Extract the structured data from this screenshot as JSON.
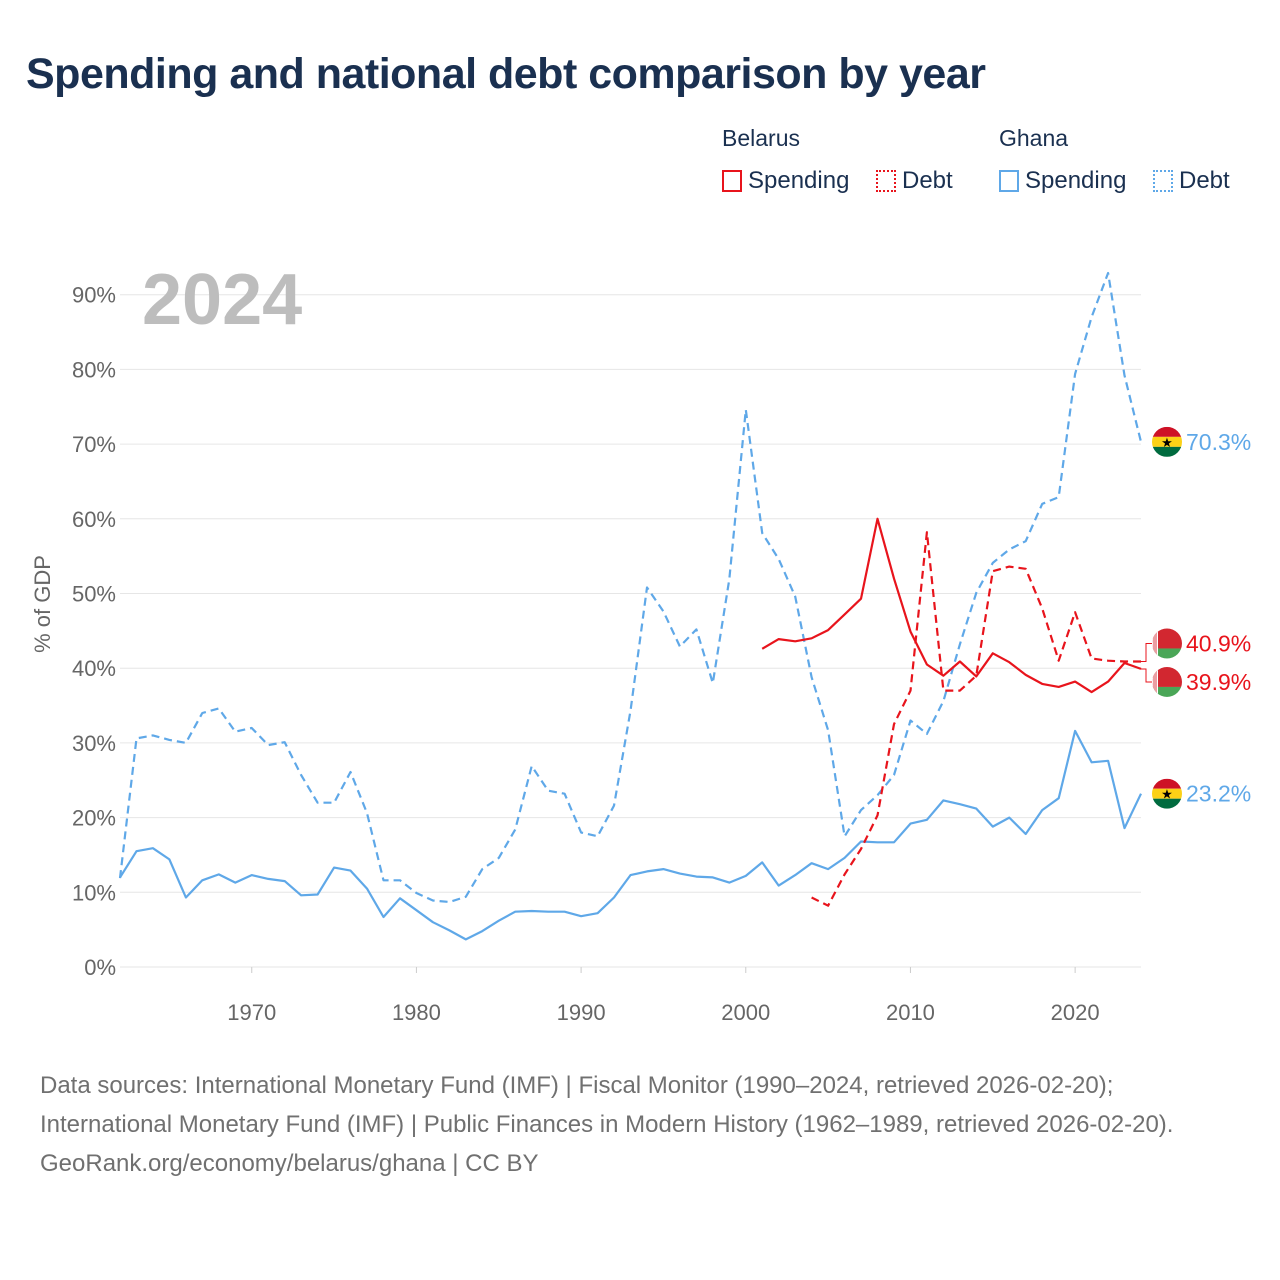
{
  "title": "Spending and national debt comparison by year",
  "legend": {
    "belarus": {
      "country": "Belarus",
      "spending": "Spending",
      "debt": "Debt"
    },
    "ghana": {
      "country": "Ghana",
      "spending": "Spending",
      "debt": "Debt"
    }
  },
  "footer": {
    "sources": "Data sources: International Monetary Fund (IMF) | Fiscal Monitor (1990–2024, retrieved 2026-02-20); International Monetary Fund (IMF) | Public Finances in Modern History (1962–1989, retrieved 2026-02-20).",
    "credit": "GeoRank.org/economy/belarus/ghana | CC BY"
  },
  "colors": {
    "belarus": "#e8141c",
    "ghana": "#5fa8e8",
    "grid": "#e6e6e6",
    "year_watermark": "#bdbdbd",
    "axis_text": "#666666"
  },
  "chart_data": {
    "type": "line",
    "year_label": "2024",
    "ylabel": "% of GDP",
    "xlim": [
      1962,
      2024
    ],
    "ylim": [
      0,
      95
    ],
    "yticks": [
      0,
      10,
      20,
      30,
      40,
      50,
      60,
      70,
      80,
      90
    ],
    "ytick_labels": [
      "0%",
      "10%",
      "20%",
      "30%",
      "40%",
      "50%",
      "60%",
      "70%",
      "80%",
      "90%"
    ],
    "xticks": [
      1970,
      1980,
      1990,
      2000,
      2010,
      2020
    ],
    "xtick_labels": [
      "1970",
      "1980",
      "1990",
      "2000",
      "2010",
      "2020"
    ],
    "series": [
      {
        "name": "Ghana Debt",
        "country": "Ghana",
        "metric": "Debt",
        "style": "dashed",
        "end_label": "70.3%",
        "x": [
          1962,
          1963,
          1964,
          1965,
          1966,
          1967,
          1968,
          1969,
          1970,
          1971,
          1972,
          1973,
          1974,
          1975,
          1976,
          1977,
          1978,
          1979,
          1980,
          1981,
          1982,
          1983,
          1984,
          1985,
          1986,
          1987,
          1988,
          1989,
          1990,
          1991,
          1992,
          1993,
          1994,
          1995,
          1996,
          1997,
          1998,
          1999,
          2000,
          2001,
          2002,
          2003,
          2004,
          2005,
          2006,
          2007,
          2008,
          2009,
          2010,
          2011,
          2012,
          2013,
          2014,
          2015,
          2016,
          2017,
          2018,
          2019,
          2020,
          2021,
          2022,
          2023,
          2024
        ],
        "values": [
          11.9,
          30.6,
          31.0,
          30.4,
          30.0,
          34.0,
          34.6,
          31.5,
          32.0,
          29.7,
          30.1,
          25.7,
          22.0,
          22.0,
          26.1,
          20.6,
          11.6,
          11.6,
          9.9,
          8.9,
          8.7,
          9.4,
          13.1,
          14.6,
          18.4,
          26.9,
          23.6,
          23.2,
          18.0,
          17.5,
          21.6,
          34.3,
          50.8,
          47.6,
          42.9,
          45.2,
          38.0,
          51.9,
          74.6,
          58.1,
          54.6,
          49.6,
          38.8,
          31.7,
          17.5,
          21.0,
          23.0,
          25.7,
          33.0,
          31.2,
          35.6,
          43.2,
          50.1,
          54.1,
          55.9,
          57.0,
          62.0,
          62.9,
          79.4,
          87.0,
          92.9,
          79.2,
          70.3
        ]
      },
      {
        "name": "Ghana Spending",
        "country": "Ghana",
        "metric": "Spending",
        "style": "solid",
        "end_label": "23.2%",
        "x": [
          1962,
          1963,
          1964,
          1965,
          1966,
          1967,
          1968,
          1969,
          1970,
          1971,
          1972,
          1973,
          1974,
          1975,
          1976,
          1977,
          1978,
          1979,
          1980,
          1981,
          1982,
          1983,
          1984,
          1985,
          1986,
          1987,
          1988,
          1989,
          1990,
          1991,
          1992,
          1993,
          1994,
          1995,
          1996,
          1997,
          1998,
          1999,
          2000,
          2001,
          2002,
          2003,
          2004,
          2005,
          2006,
          2007,
          2008,
          2009,
          2010,
          2011,
          2012,
          2013,
          2014,
          2015,
          2016,
          2017,
          2018,
          2019,
          2020,
          2021,
          2022,
          2023,
          2024
        ],
        "values": [
          12.0,
          15.5,
          15.9,
          14.4,
          9.3,
          11.6,
          12.4,
          11.3,
          12.3,
          11.8,
          11.5,
          9.6,
          9.7,
          13.3,
          12.9,
          10.5,
          6.7,
          9.2,
          7.6,
          6.0,
          4.9,
          3.7,
          4.8,
          6.2,
          7.4,
          7.5,
          7.4,
          7.4,
          6.8,
          7.2,
          9.3,
          12.3,
          12.8,
          13.1,
          12.5,
          12.1,
          12.0,
          11.3,
          12.2,
          14.0,
          10.9,
          12.3,
          13.9,
          13.1,
          14.6,
          16.8,
          16.7,
          16.7,
          19.2,
          19.7,
          22.3,
          21.8,
          21.2,
          18.8,
          20.0,
          17.8,
          21.0,
          22.6,
          31.6,
          27.4,
          27.6,
          18.6,
          23.2
        ]
      },
      {
        "name": "Belarus Debt",
        "country": "Belarus",
        "metric": "Debt",
        "style": "dashed",
        "end_label": "40.9%",
        "x": [
          2004,
          2005,
          2006,
          2007,
          2008,
          2009,
          2010,
          2011,
          2012,
          2013,
          2014,
          2015,
          2016,
          2017,
          2018,
          2019,
          2020,
          2021,
          2022,
          2023,
          2024
        ],
        "values": [
          9.3,
          8.2,
          12.4,
          15.8,
          20.3,
          32.5,
          37.0,
          58.2,
          37.0,
          37.0,
          39.0,
          53.0,
          53.6,
          53.3,
          48.0,
          41.0,
          47.5,
          41.3,
          41.0,
          40.9,
          40.9
        ]
      },
      {
        "name": "Belarus Spending",
        "country": "Belarus",
        "metric": "Spending",
        "style": "solid",
        "end_label": "39.9%",
        "x": [
          2001,
          2002,
          2003,
          2004,
          2005,
          2006,
          2007,
          2008,
          2009,
          2010,
          2011,
          2012,
          2013,
          2014,
          2015,
          2016,
          2017,
          2018,
          2019,
          2020,
          2021,
          2022,
          2023,
          2024
        ],
        "values": [
          42.6,
          43.9,
          43.6,
          44.0,
          45.1,
          47.2,
          49.3,
          60.0,
          52.0,
          44.9,
          40.5,
          39.0,
          40.9,
          38.9,
          42.0,
          40.8,
          39.1,
          37.9,
          37.5,
          38.2,
          36.8,
          38.2,
          40.7,
          39.9
        ]
      }
    ]
  }
}
